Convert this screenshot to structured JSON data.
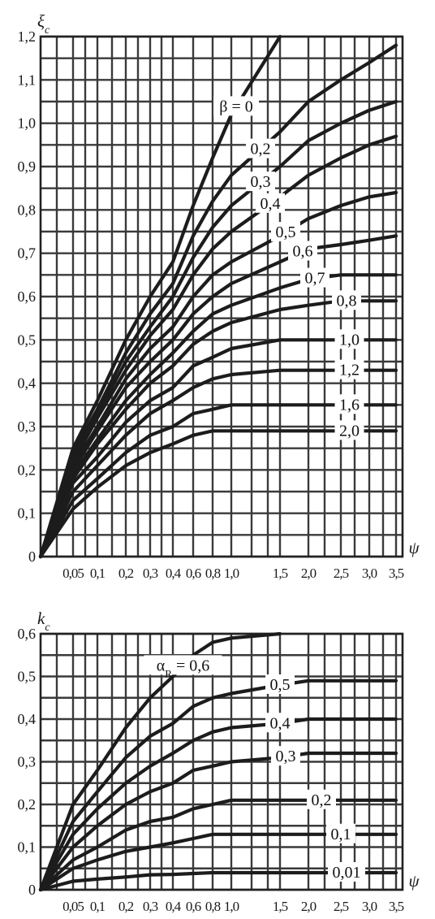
{
  "chart_data": [
    {
      "type": "line",
      "ylabel": "ξ_c",
      "xlabel": "ψ",
      "ylim": [
        0,
        1.2
      ],
      "yticks": [
        "0",
        "0,1",
        "0,2",
        "0,3",
        "0,4",
        "0,5",
        "0,6",
        "0,7",
        "0,8",
        "0,9",
        "1,0",
        "1,1",
        "1,2"
      ],
      "xtick_labels": [
        "0,05",
        "0,1",
        "0,2",
        "0,3",
        "0,4",
        "0,6",
        "0,8",
        "1,0",
        "1,5",
        "2,0",
        "2,5",
        "3,0",
        "3,5"
      ],
      "xtick_values": [
        0.05,
        0.1,
        0.2,
        0.3,
        0.4,
        0.6,
        0.8,
        1.0,
        1.5,
        2.0,
        2.5,
        3.0,
        3.5
      ],
      "param_name": "β",
      "series": [
        {
          "label": "β = 0",
          "asymptote": 1.2,
          "x": [
            0,
            0.05,
            0.1,
            0.2,
            0.3,
            0.4,
            0.6,
            0.8,
            1.0,
            1.5
          ],
          "y": [
            0,
            0.25,
            0.36,
            0.5,
            0.6,
            0.68,
            0.81,
            0.92,
            1.02,
            1.2
          ]
        },
        {
          "label": "0,2",
          "asymptote": 1.18,
          "x": [
            0,
            0.05,
            0.1,
            0.2,
            0.3,
            0.4,
            0.6,
            0.8,
            1.0,
            1.5,
            2.0,
            2.5,
            3.0,
            3.5
          ],
          "y": [
            0,
            0.24,
            0.34,
            0.47,
            0.56,
            0.63,
            0.74,
            0.82,
            0.88,
            0.98,
            1.05,
            1.1,
            1.14,
            1.18
          ]
        },
        {
          "label": "0,3",
          "asymptote": 1.05,
          "x": [
            0,
            0.05,
            0.1,
            0.2,
            0.3,
            0.4,
            0.6,
            0.8,
            1.0,
            1.5,
            2.0,
            2.5,
            3.0,
            3.5
          ],
          "y": [
            0,
            0.23,
            0.33,
            0.45,
            0.53,
            0.6,
            0.69,
            0.76,
            0.81,
            0.9,
            0.96,
            1.0,
            1.03,
            1.05
          ]
        },
        {
          "label": "0,4",
          "asymptote": 0.97,
          "x": [
            0,
            0.05,
            0.1,
            0.2,
            0.3,
            0.4,
            0.6,
            0.8,
            1.0,
            1.5,
            2.0,
            2.5,
            3.0,
            3.5
          ],
          "y": [
            0,
            0.22,
            0.32,
            0.43,
            0.51,
            0.57,
            0.65,
            0.71,
            0.75,
            0.83,
            0.88,
            0.92,
            0.95,
            0.97
          ]
        },
        {
          "label": "0,5",
          "asymptote": 0.84,
          "x": [
            0,
            0.05,
            0.1,
            0.2,
            0.3,
            0.4,
            0.6,
            0.8,
            1.0,
            1.5,
            2.0,
            2.5,
            3.0,
            3.5
          ],
          "y": [
            0,
            0.21,
            0.3,
            0.41,
            0.48,
            0.53,
            0.6,
            0.65,
            0.68,
            0.74,
            0.78,
            0.81,
            0.83,
            0.84
          ]
        },
        {
          "label": "0,6",
          "asymptote": 0.74,
          "x": [
            0,
            0.05,
            0.1,
            0.2,
            0.3,
            0.4,
            0.6,
            0.8,
            1.0,
            1.5,
            2.0,
            2.5,
            3.0,
            3.5
          ],
          "y": [
            0,
            0.2,
            0.29,
            0.39,
            0.45,
            0.5,
            0.56,
            0.6,
            0.63,
            0.68,
            0.71,
            0.72,
            0.73,
            0.74
          ]
        },
        {
          "label": "0,7",
          "asymptote": 0.65,
          "x": [
            0,
            0.05,
            0.1,
            0.2,
            0.3,
            0.4,
            0.6,
            0.8,
            1.0,
            1.5,
            2.0,
            2.5,
            3.0,
            3.5
          ],
          "y": [
            0,
            0.19,
            0.27,
            0.36,
            0.42,
            0.47,
            0.52,
            0.56,
            0.58,
            0.62,
            0.64,
            0.65,
            0.65,
            0.65
          ]
        },
        {
          "label": "0,8",
          "asymptote": 0.59,
          "x": [
            0,
            0.05,
            0.1,
            0.2,
            0.3,
            0.4,
            0.6,
            0.8,
            1.0,
            1.5,
            2.0,
            2.5,
            3.0,
            3.5
          ],
          "y": [
            0,
            0.18,
            0.26,
            0.34,
            0.4,
            0.44,
            0.49,
            0.52,
            0.54,
            0.57,
            0.58,
            0.59,
            0.59,
            0.59
          ]
        },
        {
          "label": "1,0",
          "asymptote": 0.5,
          "x": [
            0,
            0.05,
            0.1,
            0.2,
            0.3,
            0.4,
            0.6,
            0.8,
            1.0,
            1.5,
            2.0,
            2.5,
            3.0,
            3.5
          ],
          "y": [
            0,
            0.17,
            0.23,
            0.31,
            0.36,
            0.39,
            0.44,
            0.46,
            0.48,
            0.5,
            0.5,
            0.5,
            0.5,
            0.5
          ]
        },
        {
          "label": "1,2",
          "asymptote": 0.43,
          "x": [
            0,
            0.05,
            0.1,
            0.2,
            0.3,
            0.4,
            0.6,
            0.8,
            1.0,
            1.5,
            2.0,
            2.5,
            3.0,
            3.5
          ],
          "y": [
            0,
            0.15,
            0.21,
            0.28,
            0.33,
            0.36,
            0.39,
            0.41,
            0.42,
            0.43,
            0.43,
            0.43,
            0.43,
            0.43
          ]
        },
        {
          "label": "1,6",
          "asymptote": 0.35,
          "x": [
            0,
            0.05,
            0.1,
            0.2,
            0.3,
            0.4,
            0.6,
            0.8,
            1.0,
            1.5,
            2.0,
            2.5,
            3.0,
            3.5
          ],
          "y": [
            0,
            0.13,
            0.18,
            0.24,
            0.28,
            0.3,
            0.33,
            0.34,
            0.35,
            0.35,
            0.35,
            0.35,
            0.35,
            0.35
          ]
        },
        {
          "label": "2,0",
          "asymptote": 0.29,
          "x": [
            0,
            0.05,
            0.1,
            0.2,
            0.3,
            0.4,
            0.6,
            0.8,
            1.0,
            1.5,
            2.0,
            2.5,
            3.0,
            3.5
          ],
          "y": [
            0,
            0.11,
            0.16,
            0.21,
            0.24,
            0.26,
            0.28,
            0.29,
            0.29,
            0.29,
            0.29,
            0.29,
            0.29,
            0.29
          ]
        }
      ]
    },
    {
      "type": "line",
      "ylabel": "k_c",
      "xlabel": "ψ",
      "ylim": [
        0,
        0.6
      ],
      "yticks": [
        "0",
        "0,1",
        "0,2",
        "0,3",
        "0,4",
        "0,5",
        "0,6"
      ],
      "xtick_labels": [
        "0,05",
        "0,1",
        "0,2",
        "0,3",
        "0,4",
        "0,6",
        "0,8",
        "1,0",
        "1,5",
        "2,0",
        "2,5",
        "3,0",
        "3,5"
      ],
      "xtick_values": [
        0.05,
        0.1,
        0.2,
        0.3,
        0.4,
        0.6,
        0.8,
        1.0,
        1.5,
        2.0,
        2.5,
        3.0,
        3.5
      ],
      "param_name": "α_R",
      "series": [
        {
          "label": "α_R = 0,6",
          "asymptote": 0.6,
          "x": [
            0,
            0.05,
            0.1,
            0.2,
            0.3,
            0.4,
            0.6,
            0.8,
            1.0,
            1.5
          ],
          "y": [
            0,
            0.2,
            0.28,
            0.38,
            0.45,
            0.5,
            0.55,
            0.58,
            0.59,
            0.6
          ]
        },
        {
          "label": "0,5",
          "asymptote": 0.49,
          "x": [
            0,
            0.05,
            0.1,
            0.2,
            0.3,
            0.4,
            0.6,
            0.8,
            1.0,
            1.5,
            2.0,
            2.5,
            3.0,
            3.5
          ],
          "y": [
            0,
            0.16,
            0.23,
            0.31,
            0.36,
            0.39,
            0.43,
            0.45,
            0.46,
            0.48,
            0.49,
            0.49,
            0.49,
            0.49
          ]
        },
        {
          "label": "0,4",
          "asymptote": 0.4,
          "x": [
            0,
            0.05,
            0.1,
            0.2,
            0.3,
            0.4,
            0.6,
            0.8,
            1.0,
            1.5,
            2.0,
            2.5,
            3.0,
            3.5
          ],
          "y": [
            0,
            0.13,
            0.19,
            0.25,
            0.29,
            0.32,
            0.35,
            0.37,
            0.38,
            0.39,
            0.4,
            0.4,
            0.4,
            0.4
          ]
        },
        {
          "label": "0,3",
          "asymptote": 0.32,
          "x": [
            0,
            0.05,
            0.1,
            0.2,
            0.3,
            0.4,
            0.6,
            0.8,
            1.0,
            1.5,
            2.0,
            2.5,
            3.0,
            3.5
          ],
          "y": [
            0,
            0.1,
            0.15,
            0.2,
            0.23,
            0.25,
            0.28,
            0.29,
            0.3,
            0.31,
            0.32,
            0.32,
            0.32,
            0.32
          ]
        },
        {
          "label": "0,2",
          "asymptote": 0.21,
          "x": [
            0,
            0.05,
            0.1,
            0.2,
            0.3,
            0.4,
            0.6,
            0.8,
            1.0,
            1.5,
            2.0,
            2.5,
            3.0,
            3.5
          ],
          "y": [
            0,
            0.07,
            0.1,
            0.14,
            0.16,
            0.17,
            0.19,
            0.2,
            0.21,
            0.21,
            0.21,
            0.21,
            0.21,
            0.21
          ]
        },
        {
          "label": "0,1",
          "asymptote": 0.13,
          "x": [
            0,
            0.05,
            0.1,
            0.2,
            0.3,
            0.4,
            0.6,
            0.8,
            1.0,
            1.5,
            2.0,
            2.5,
            3.0,
            3.5
          ],
          "y": [
            0,
            0.05,
            0.07,
            0.09,
            0.1,
            0.11,
            0.12,
            0.13,
            0.13,
            0.13,
            0.13,
            0.13,
            0.13,
            0.13
          ]
        },
        {
          "label": "0,01",
          "asymptote": 0.04,
          "x": [
            0,
            0.05,
            0.1,
            0.2,
            0.3,
            0.4,
            0.6,
            0.8,
            1.0,
            1.5,
            2.0,
            2.5,
            3.0,
            3.5
          ],
          "y": [
            0,
            0.02,
            0.025,
            0.03,
            0.035,
            0.036,
            0.038,
            0.04,
            0.04,
            0.04,
            0.04,
            0.04,
            0.04,
            0.04
          ]
        }
      ]
    }
  ]
}
